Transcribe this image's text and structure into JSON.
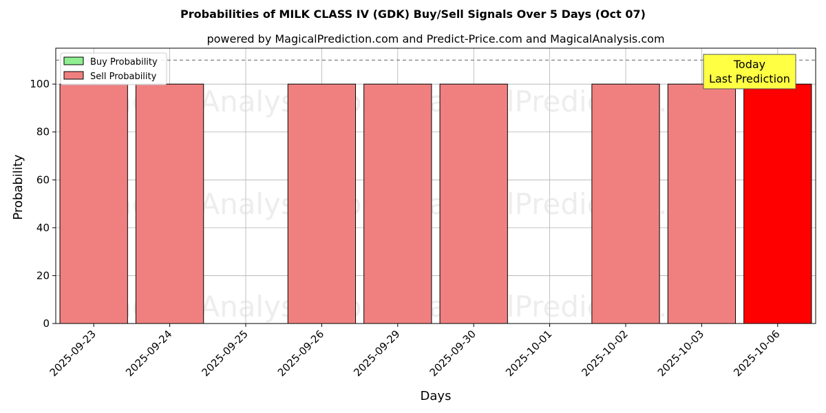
{
  "colors": {
    "buy": "#90ee90",
    "sell": "#f08080",
    "today": "#ff0000",
    "annotation_bg": "#ffff44",
    "grid": "#b0b0b0",
    "threshold_line": "#808080"
  },
  "watermarks": [
    "MagicalAnalysis.com",
    "MagicalPrediction.com"
  ],
  "chart_data": {
    "type": "bar",
    "title": "Probabilities of MILK CLASS IV (GDK) Buy/Sell Signals Over 5 Days (Oct 07)",
    "subtitle": "powered by MagicalPrediction.com and Predict-Price.com and MagicalAnalysis.com",
    "xlabel": "Days",
    "ylabel": "Probability",
    "ylim": [
      0,
      115
    ],
    "yticks": [
      0,
      20,
      40,
      60,
      80,
      100
    ],
    "threshold": 110,
    "grid": true,
    "legend_position": "top-left",
    "categories": [
      "2025-09-23",
      "2025-09-24",
      "2025-09-25",
      "2025-09-26",
      "2025-09-29",
      "2025-09-30",
      "2025-10-01",
      "2025-10-02",
      "2025-10-03",
      "2025-10-06"
    ],
    "series": [
      {
        "name": "Buy Probability",
        "values": [
          0,
          0,
          0,
          0,
          0,
          0,
          0,
          0,
          0,
          0
        ]
      },
      {
        "name": "Sell Probability",
        "values": [
          100,
          100,
          0,
          100,
          100,
          100,
          0,
          100,
          100,
          100
        ]
      }
    ],
    "highlight_index": 9,
    "annotation": {
      "line1": "Today",
      "line2": "Last Prediction"
    }
  }
}
